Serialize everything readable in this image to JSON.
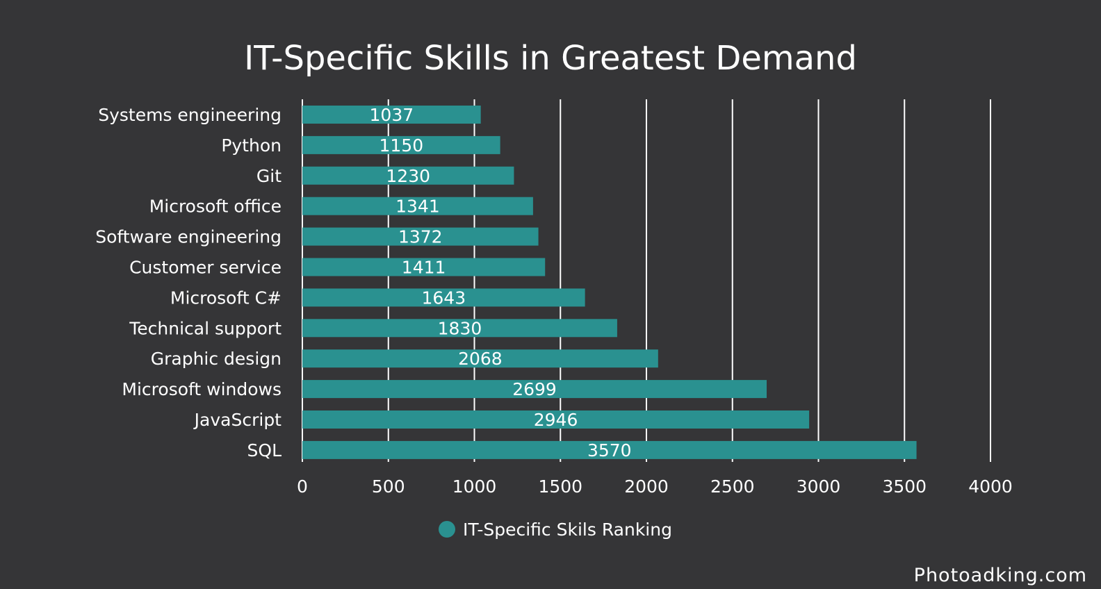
{
  "chart_data": {
    "type": "bar",
    "orientation": "horizontal",
    "title": "IT-Specific Skills in Greatest Demand",
    "categories": [
      "Systems engineering",
      "Python",
      "Git",
      "Microsoft office",
      "Software engineering",
      "Customer service",
      "Microsoft C#",
      "Technical support",
      "Graphic design",
      "Microsoft windows",
      "JavaScript",
      "SQL"
    ],
    "series": [
      {
        "name": "IT-Specific Skils Ranking",
        "values": [
          1037,
          1150,
          1230,
          1341,
          1372,
          1411,
          1643,
          1830,
          2068,
          2699,
          2946,
          3570
        ]
      }
    ],
    "xlim": [
      0,
      4000
    ],
    "x_ticks": [
      0,
      500,
      1000,
      1500,
      2000,
      2500,
      3000,
      3500,
      4000
    ],
    "grid": true,
    "data_labels": true,
    "legend_position": "bottom-center",
    "colors": {
      "bar": "#2a9190",
      "background": "#353537",
      "text": "#ffffff"
    }
  },
  "watermark": "Photoadking.com"
}
